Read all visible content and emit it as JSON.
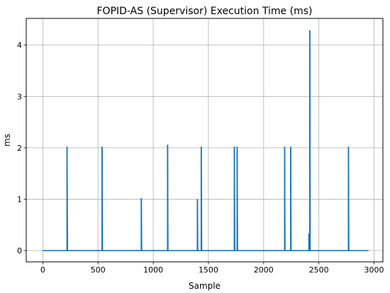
{
  "chart_data": {
    "type": "line",
    "title": "FOPID-AS (Supervisor) Execution Time (ms)",
    "xlabel": "Sample",
    "ylabel": "ms",
    "xlim": [
      -150,
      3080
    ],
    "ylim": [
      -0.22,
      4.52
    ],
    "xticks": [
      0,
      500,
      1000,
      1500,
      2000,
      2500,
      3000
    ],
    "yticks": [
      0,
      1,
      2,
      3,
      4
    ],
    "grid": true,
    "legend": "none",
    "series_color": "#1f77b4",
    "x_range": [
      0,
      2950
    ],
    "baseline": 0,
    "spikes": [
      {
        "x": 220,
        "y": 2.02
      },
      {
        "x": 537,
        "y": 2.02
      },
      {
        "x": 892,
        "y": 1.02
      },
      {
        "x": 1130,
        "y": 2.06
      },
      {
        "x": 1400,
        "y": 1.0
      },
      {
        "x": 1435,
        "y": 2.02
      },
      {
        "x": 1735,
        "y": 2.02
      },
      {
        "x": 1760,
        "y": 2.02
      },
      {
        "x": 2190,
        "y": 2.02
      },
      {
        "x": 2245,
        "y": 2.02
      },
      {
        "x": 2410,
        "y": 0.33
      },
      {
        "x": 2418,
        "y": 4.29
      },
      {
        "x": 2768,
        "y": 2.02
      }
    ]
  }
}
